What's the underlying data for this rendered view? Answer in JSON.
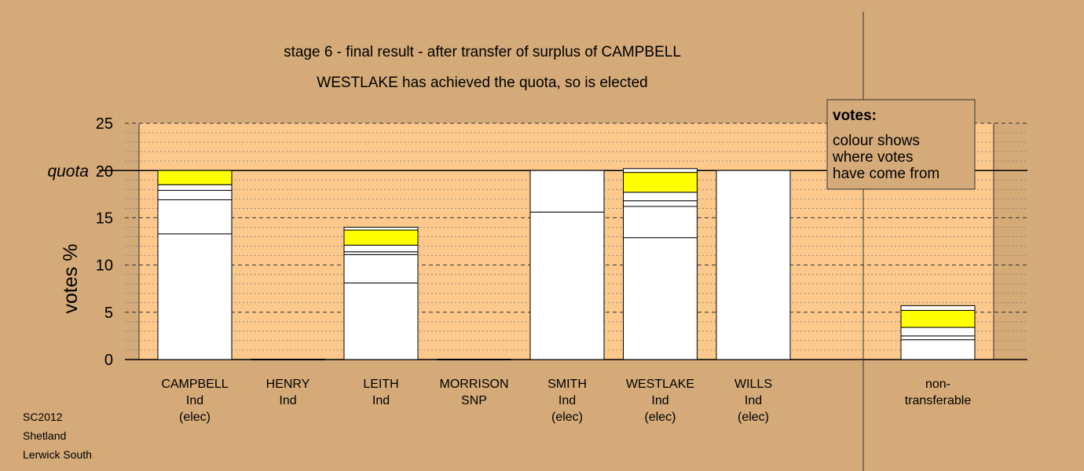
{
  "chart_data": {
    "type": "bar",
    "stacked": true,
    "title": "stage 6 - final result - after transfer of surplus of CAMPBELL",
    "subtitle": "WESTLAKE has achieved the quota, so is elected",
    "ylabel": "votes %",
    "ylim": [
      0,
      25
    ],
    "yticks": [
      0,
      5,
      10,
      15,
      20,
      25
    ],
    "quota": 20,
    "quota_label": "quota",
    "grid": true,
    "legend": {
      "title": "votes:",
      "lines": [
        "colour shows",
        "where votes",
        "have come from"
      ],
      "position": "top-right"
    },
    "categories": [
      {
        "lines": [
          "CAMPBELL",
          "Ind",
          "(elec)"
        ],
        "segments": [
          {
            "value": 13.3,
            "color": "#ffffff"
          },
          {
            "value": 3.6,
            "color": "#ffffff"
          },
          {
            "value": 1.0,
            "color": "#ffffff"
          },
          {
            "value": 0.6,
            "color": "#ffffff"
          },
          {
            "value": 1.5,
            "color": "#ffff00"
          }
        ]
      },
      {
        "lines": [
          "HENRY",
          "Ind"
        ],
        "segments": []
      },
      {
        "lines": [
          "LEITH",
          "Ind"
        ],
        "segments": [
          {
            "value": 8.1,
            "color": "#ffffff"
          },
          {
            "value": 3.0,
            "color": "#ffffff"
          },
          {
            "value": 0.3,
            "color": "#ffffff"
          },
          {
            "value": 0.7,
            "color": "#ffffff"
          },
          {
            "value": 1.6,
            "color": "#ffff00"
          },
          {
            "value": 0.3,
            "color": "#ffffff"
          }
        ]
      },
      {
        "lines": [
          "MORRISON",
          "SNP"
        ],
        "segments": []
      },
      {
        "lines": [
          "SMITH",
          "Ind",
          "(elec)"
        ],
        "segments": [
          {
            "value": 15.6,
            "color": "#ffffff"
          },
          {
            "value": 4.4,
            "color": "#ffffff"
          }
        ]
      },
      {
        "lines": [
          "WESTLAKE",
          "Ind",
          "(elec)"
        ],
        "segments": [
          {
            "value": 12.9,
            "color": "#ffffff"
          },
          {
            "value": 3.3,
            "color": "#ffffff"
          },
          {
            "value": 0.6,
            "color": "#ffffff"
          },
          {
            "value": 0.9,
            "color": "#ffffff"
          },
          {
            "value": 2.1,
            "color": "#ffff00"
          },
          {
            "value": 0.4,
            "color": "#ffffff"
          }
        ]
      },
      {
        "lines": [
          "WILLS",
          "Ind",
          "(elec)"
        ],
        "segments": [
          {
            "value": 20.0,
            "color": "#ffffff"
          }
        ]
      }
    ],
    "non_transferable": {
      "lines": [
        "non-",
        "transferable"
      ],
      "segments": [
        {
          "value": 2.1,
          "color": "#ffffff"
        },
        {
          "value": 0.4,
          "color": "#ffffff"
        },
        {
          "value": 0.9,
          "color": "#ffffff"
        },
        {
          "value": 1.8,
          "color": "#ffff00"
        },
        {
          "value": 0.5,
          "color": "#ffffff"
        }
      ]
    }
  },
  "footer": {
    "code": "SC2012",
    "council": "Shetland",
    "ward": "Lerwick South"
  },
  "colors": {
    "background": "#d4aa78",
    "plot_area": "#fcc88c",
    "bar": "#ffffff",
    "highlight": "#ffff00"
  }
}
